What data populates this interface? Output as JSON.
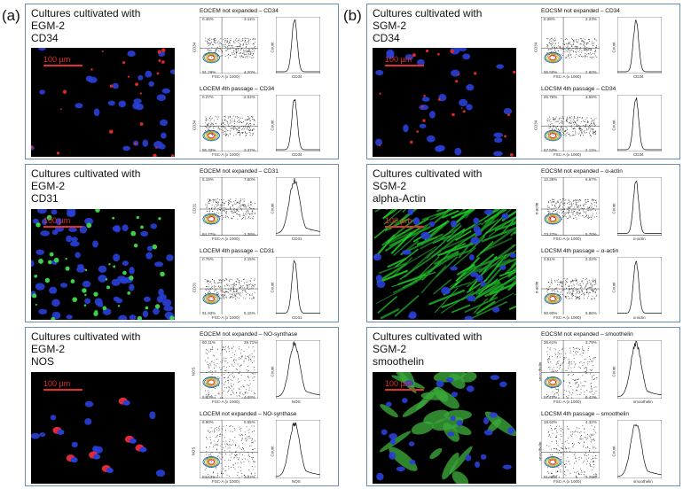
{
  "labels": {
    "a": "(a)",
    "b": "(b)"
  },
  "scalebar_label": "100 µm",
  "panels": [
    {
      "id": "a1",
      "title": "Cultures cultivated with\nEGM-2\nCD34",
      "stain": "red-sparse",
      "plots": [
        {
          "title": "EOCEM not expanded – CD34",
          "ylabel": "CD34",
          "hist_xlabel": "CD34",
          "q": [
            "0.46%",
            "3.11%",
            "91.29%",
            "4.20%"
          ]
        },
        {
          "title": "LOCEM 4th passage – CD34",
          "ylabel": "CD34",
          "hist_xlabel": "CD34",
          "q": [
            "0.27%",
            "2.02%",
            "95.33%",
            "3.37%"
          ]
        }
      ]
    },
    {
      "id": "a2",
      "title": "Cultures cultivated with\nEGM-2\nCD31",
      "stain": "green-dots",
      "plots": [
        {
          "title": "EOCEM not expanded – CD31",
          "ylabel": "CD31",
          "hist_xlabel": "CD31",
          "q": [
            "5.19%",
            "7.60%",
            "84.77%",
            "2.38%"
          ]
        },
        {
          "title": "LOCEM 4th passage – CD31",
          "ylabel": "CD31",
          "hist_xlabel": "CD31",
          "q": [
            "0.76%",
            "2.15%",
            "91.93%",
            "5.15%"
          ]
        }
      ]
    },
    {
      "id": "a3",
      "title": "Cultures cultivated with\nEGM-2\nNOS",
      "stain": "red-few",
      "plots": [
        {
          "title": "EOCEM not expanded – NO-synthase",
          "ylabel": "NOS",
          "hist_xlabel": "NOS",
          "q": [
            "60.11%",
            "29.71%",
            "5.80%",
            "4.38%"
          ]
        },
        {
          "title": "LOCEM not expanded – NO-synthase",
          "ylabel": "NOS",
          "hist_xlabel": "NOS",
          "q": [
            "8.90%",
            "5.55%",
            "83.53%",
            "2.02%"
          ]
        }
      ]
    },
    {
      "id": "b1",
      "title": "Cultures cultivated with\nSGM-2\nCD34",
      "stain": "red-sparse",
      "plots": [
        {
          "title": "EOCSM not expanded – CD34",
          "ylabel": "CD34",
          "hist_xlabel": "CD34",
          "q": [
            "0.38%",
            "2.23%",
            "95.50%",
            "2.60%"
          ]
        },
        {
          "title": "LOCSM 4th passage – CD34",
          "ylabel": "CD34",
          "hist_xlabel": "CD34",
          "q": [
            "26.76%",
            "3.59%",
            "67.53%",
            "2.11%"
          ]
        }
      ]
    },
    {
      "id": "b2",
      "title": "Cultures cultivated with\nSGM-2\nalpha-Actin",
      "stain": "green-fiber",
      "plots": [
        {
          "title": "EOCSM not expanded – α-actin",
          "ylabel": "α-actin",
          "hist_xlabel": "α-actin",
          "q": [
            "12.36%",
            "6.67%",
            "73.27%",
            "5.70%"
          ]
        },
        {
          "title": "LOCSM 4th passage – α-actin",
          "ylabel": "α-actin",
          "hist_xlabel": "α-actin",
          "q": [
            "0.51%",
            "2.22%",
            "90.90%",
            "6.86%"
          ]
        }
      ]
    },
    {
      "id": "b3",
      "title": "Cultures cultivated with\nSGM-2\nsmoothelin",
      "stain": "green-cells",
      "plots": [
        {
          "title": "EOCSM not expanded – smoothelin",
          "ylabel": "smoothelin",
          "hist_xlabel": "smoothelin",
          "q": [
            "36.61%",
            "3.79%",
            "57.70%",
            "0.43%"
          ]
        },
        {
          "title": "LOCSM 4th passage – smoothelin",
          "ylabel": "smoothelin",
          "hist_xlabel": "smoothelin",
          "q": [
            "18.62%",
            "4.32%",
            "61.98%",
            "3.20%"
          ]
        }
      ]
    }
  ],
  "dot_xlabel": "FSC-A (x 1000)",
  "hist_ylabel": "Count"
}
